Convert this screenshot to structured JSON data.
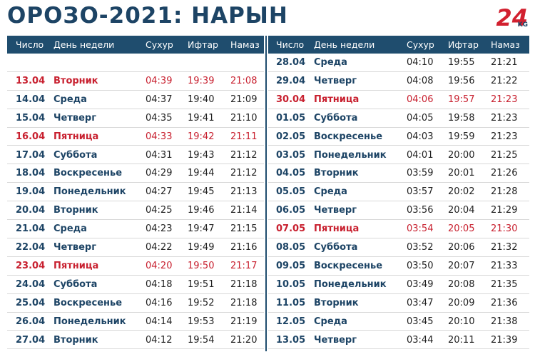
{
  "title": "ОРОЗО-2021: НАРЫН",
  "logo": {
    "main": "24",
    "sub": "KG"
  },
  "highlight_color": "#c8202f",
  "tables": [
    {
      "header": [
        "Число",
        "День недели",
        "Сухур",
        "Ифтар",
        "Намаз"
      ],
      "highlighted_rows": [
        0,
        3,
        10
      ],
      "rows": [
        [
          "13.04",
          "Вторник",
          "04:39",
          "19:39",
          "21:08"
        ],
        [
          "14.04",
          "Среда",
          "04:37",
          "19:40",
          "21:09"
        ],
        [
          "15.04",
          "Четверг",
          "04:35",
          "19:41",
          "21:10"
        ],
        [
          "16.04",
          "Пятница",
          "04:33",
          "19:42",
          "21:11"
        ],
        [
          "17.04",
          "Суббота",
          "04:31",
          "19:43",
          "21:12"
        ],
        [
          "18.04",
          "Воскресенье",
          "04:29",
          "19:44",
          "21:12"
        ],
        [
          "19.04",
          "Понедельник",
          "04:27",
          "19:45",
          "21:13"
        ],
        [
          "20.04",
          "Вторник",
          "04:25",
          "19:46",
          "21:14"
        ],
        [
          "21.04",
          "Среда",
          "04:23",
          "19:47",
          "21:15"
        ],
        [
          "22.04",
          "Четверг",
          "04:22",
          "19:49",
          "21:16"
        ],
        [
          "23.04",
          "Пятница",
          "04:20",
          "19:50",
          "21:17"
        ],
        [
          "24.04",
          "Суббота",
          "04:18",
          "19:51",
          "21:18"
        ],
        [
          "25.04",
          "Воскресенье",
          "04:16",
          "19:52",
          "21:18"
        ],
        [
          "26.04",
          "Понедельник",
          "04:14",
          "19:53",
          "21:19"
        ],
        [
          "27.04",
          "Вторник",
          "04:12",
          "19:54",
          "21:20"
        ]
      ]
    },
    {
      "header": [
        "Число",
        "День недели",
        "Сухур",
        "Ифтар",
        "Намаз"
      ],
      "highlighted_rows": [
        2,
        9
      ],
      "rows": [
        [
          "28.04",
          "Среда",
          "04:10",
          "19:55",
          "21:21"
        ],
        [
          "29.04",
          "Четверг",
          "04:08",
          "19:56",
          "21:22"
        ],
        [
          "30.04",
          "Пятница",
          "04:06",
          "19:57",
          "21:23"
        ],
        [
          "01.05",
          "Суббота",
          "04:05",
          "19:58",
          "21:23"
        ],
        [
          "02.05",
          "Воскресенье",
          "04:03",
          "19:59",
          "21:23"
        ],
        [
          "03.05",
          "Понедельник",
          "04:01",
          "20:00",
          "21:25"
        ],
        [
          "04.05",
          "Вторник",
          "03:59",
          "20:01",
          "21:26"
        ],
        [
          "05.05",
          "Среда",
          "03:57",
          "20:02",
          "21:28"
        ],
        [
          "06.05",
          "Четверг",
          "03:56",
          "20:04",
          "21:29"
        ],
        [
          "07.05",
          "Пятница",
          "03:54",
          "20:05",
          "21:30"
        ],
        [
          "08.05",
          "Суббота",
          "03:52",
          "20:06",
          "21:32"
        ],
        [
          "09.05",
          "Воскресенье",
          "03:50",
          "20:07",
          "21:33"
        ],
        [
          "10.05",
          "Понедельник",
          "03:49",
          "20:08",
          "21:35"
        ],
        [
          "11.05",
          "Вторник",
          "03:47",
          "20:09",
          "21:36"
        ],
        [
          "12.05",
          "Среда",
          "03:45",
          "20:10",
          "21:38"
        ],
        [
          "13.05",
          "Четверг",
          "03:44",
          "20:11",
          "21:39"
        ]
      ]
    }
  ]
}
